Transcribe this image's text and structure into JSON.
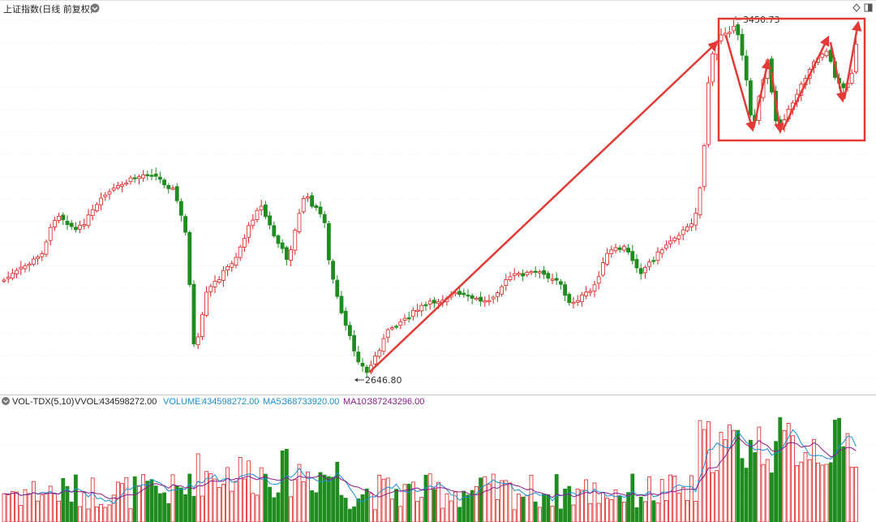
{
  "price_panel": {
    "title": "上证指数(日线 前复权)",
    "low_label": "2646.80",
    "high_label": "3450.73",
    "colors": {
      "up": "#e02020",
      "down": "#1e8c1e",
      "annotation": "#e53935"
    }
  },
  "volume_panel": {
    "indicator": "VOL-TDX(5,10)",
    "vvol_label": "VVOL:",
    "vvol_value": "434598272.00",
    "volume_label": "VOLUME:",
    "volume_value": "434598272.00",
    "ma5_label": "MA5:",
    "ma5_value": "368733920.00",
    "ma10_label": "MA10:",
    "ma10_value": "387243296.00",
    "colors": {
      "volume": "#1a8fd6",
      "ma5": "#1a8fd6",
      "ma10": "#8b1a8b"
    }
  },
  "toolbar": {
    "icons": [
      "chevron-down-icon",
      "diamond-icon",
      "panel-toggle-icon"
    ]
  },
  "chart_data": {
    "type": "candlestick",
    "title": "上证指数(日线 前复权)",
    "price_range_approx": [
      2600,
      3500
    ],
    "annotations": [
      {
        "type": "label",
        "text": "2646.80",
        "meaning": "period low"
      },
      {
        "type": "label",
        "text": "3450.73",
        "meaning": "period high"
      },
      {
        "type": "arrow",
        "from_price": 2647,
        "to_price": 3440
      },
      {
        "type": "box",
        "price_range": [
          3220,
          3450
        ]
      }
    ],
    "volume": {
      "indicator": "VOL-TDX(5,10)",
      "last_volume": 434598272.0,
      "ma5": 368733920.0,
      "ma10": 387243296.0
    }
  }
}
